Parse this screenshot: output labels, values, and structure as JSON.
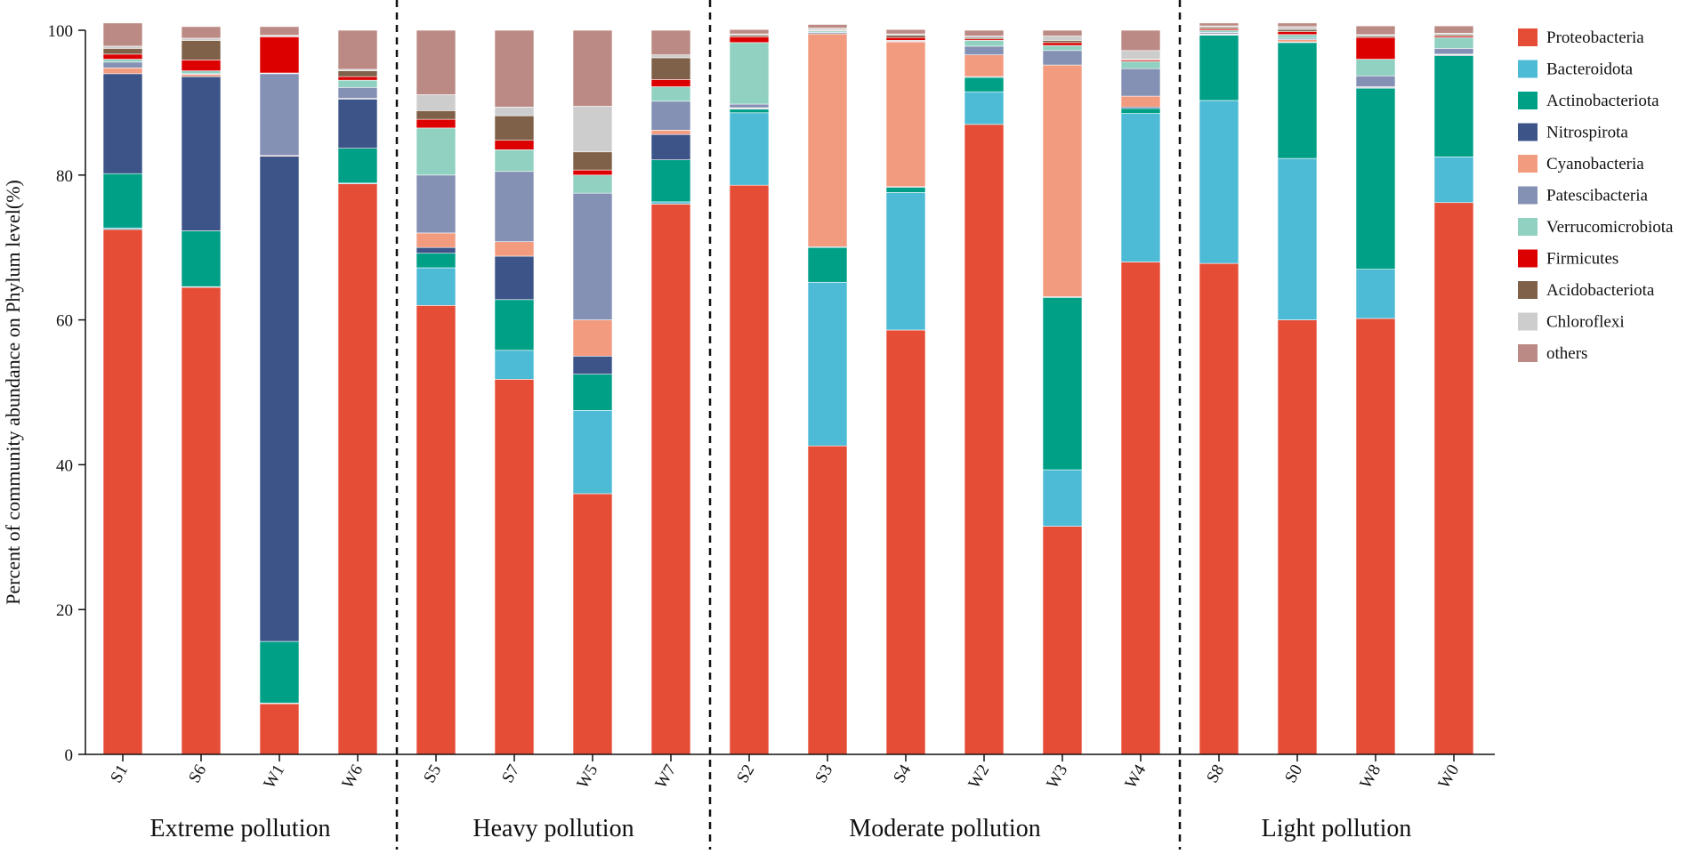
{
  "chart_data": {
    "type": "bar",
    "stacked": true,
    "title": "",
    "xlabel": "",
    "ylabel": "Percent of community abundance on Phylum level(%)",
    "ylim": [
      0,
      100
    ],
    "yticks": [
      0,
      20,
      40,
      60,
      80,
      100
    ],
    "grid": false,
    "legend_position": "right",
    "categories": [
      "S1",
      "S6",
      "W1",
      "W6",
      "S5",
      "S7",
      "W5",
      "W7",
      "S2",
      "S3",
      "S4",
      "W2",
      "W3",
      "W4",
      "S8",
      "S0",
      "W8",
      "W0"
    ],
    "groups": [
      {
        "label": "Extreme pollution",
        "categories": [
          "S1",
          "S6",
          "W1",
          "W6"
        ]
      },
      {
        "label": "Heavy  pollution",
        "categories": [
          "S5",
          "S7",
          "W5",
          "W7"
        ]
      },
      {
        "label": "Moderate  pollution",
        "categories": [
          "S2",
          "S3",
          "S4",
          "W2",
          "W3",
          "W4"
        ]
      },
      {
        "label": "Light  pollution",
        "categories": [
          "S8",
          "S0",
          "W8",
          "W0"
        ]
      }
    ],
    "series": [
      {
        "name": "Proteobacteria",
        "color": "#E64D37",
        "values": [
          72.5,
          64.5,
          7.0,
          78.8,
          62.0,
          51.8,
          36.0,
          76.0,
          78.6,
          42.6,
          58.6,
          87.0,
          31.5,
          68.0,
          67.8,
          60.0,
          60.2,
          76.2
        ]
      },
      {
        "name": "Bacteroidota",
        "color": "#4DBBD5",
        "values": [
          0.2,
          0.1,
          0.1,
          0.1,
          5.2,
          4.0,
          11.5,
          0.3,
          10.0,
          22.6,
          19.0,
          4.5,
          7.8,
          20.5,
          22.5,
          22.3,
          6.8,
          6.3
        ]
      },
      {
        "name": "Actinobacteriota",
        "color": "#00A087",
        "values": [
          7.5,
          7.7,
          8.5,
          4.8,
          2.0,
          7.0,
          5.0,
          5.8,
          0.5,
          4.8,
          0.7,
          2.0,
          23.8,
          0.7,
          9.0,
          16.0,
          25.0,
          14.0
        ]
      },
      {
        "name": "Nitrospirota",
        "color": "#3C5488",
        "values": [
          13.8,
          21.3,
          67.0,
          6.8,
          0.8,
          6.0,
          2.5,
          3.5,
          0.1,
          0.1,
          0.1,
          0.1,
          0.1,
          0.2,
          0.1,
          0.1,
          0.1,
          0.1
        ]
      },
      {
        "name": "Cyanobacteria",
        "color": "#F39B7F",
        "values": [
          0.8,
          0.3,
          0.1,
          0.1,
          2.0,
          2.0,
          5.0,
          0.6,
          0.1,
          29.4,
          20.0,
          3.0,
          32.0,
          1.5,
          0.1,
          0.3,
          0.1,
          0.1
        ]
      },
      {
        "name": "Patescibacteria",
        "color": "#8491B4",
        "values": [
          0.8,
          0.1,
          11.3,
          1.5,
          8.0,
          9.7,
          17.5,
          4.0,
          0.5,
          0.2,
          0.1,
          1.2,
          2.0,
          3.8,
          0.2,
          0.2,
          1.5,
          0.8
        ]
      },
      {
        "name": "Verrucomicrobiota",
        "color": "#91D1C2",
        "values": [
          0.4,
          0.4,
          0.1,
          1.0,
          6.5,
          3.0,
          2.5,
          2.0,
          8.5,
          0.2,
          0.1,
          0.8,
          0.7,
          1.0,
          0.3,
          0.5,
          2.3,
          1.5
        ]
      },
      {
        "name": "Firmicutes",
        "color": "#DC0000",
        "values": [
          0.7,
          1.5,
          5.0,
          0.5,
          1.2,
          1.3,
          0.7,
          1.0,
          0.8,
          0.1,
          0.4,
          0.2,
          0.4,
          0.2,
          0.2,
          0.4,
          3.0,
          0.2
        ]
      },
      {
        "name": "Acidobacteriota",
        "color": "#7E6148",
        "values": [
          0.8,
          2.7,
          0.1,
          0.8,
          1.2,
          3.4,
          2.5,
          3.0,
          0.2,
          0.1,
          0.3,
          0.2,
          0.3,
          0.1,
          0.2,
          0.3,
          0.2,
          0.2
        ]
      },
      {
        "name": "Chloroflexi",
        "color": "#CDCDCD",
        "values": [
          0.3,
          0.3,
          0.1,
          0.2,
          2.2,
          1.2,
          6.3,
          0.4,
          0.2,
          0.2,
          0.2,
          0.2,
          0.6,
          1.2,
          0.2,
          0.4,
          0.2,
          0.2
        ]
      },
      {
        "name": "others",
        "color": "#BC8A84",
        "values": [
          3.2,
          1.6,
          1.2,
          5.4,
          8.9,
          10.6,
          10.5,
          3.4,
          0.6,
          0.5,
          0.6,
          0.8,
          0.8,
          2.8,
          0.4,
          0.5,
          1.2,
          1.0
        ]
      }
    ]
  }
}
